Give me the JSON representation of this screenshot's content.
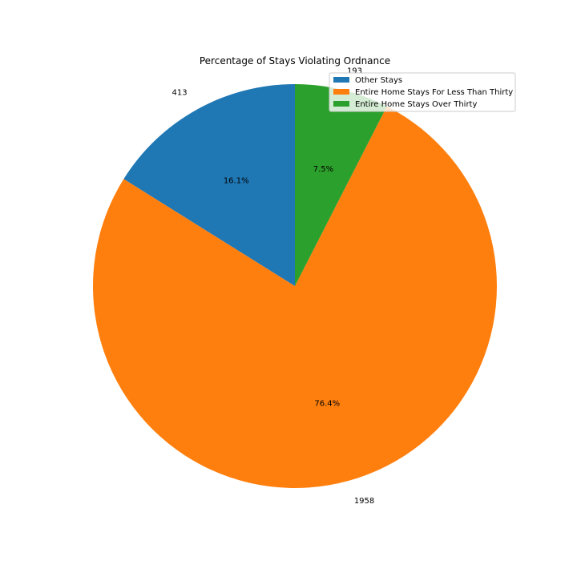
{
  "chart_data": {
    "type": "pie",
    "title": "Percentage of Stays Violating Ordnance",
    "start_angle_deg": 90,
    "direction": "counterclockwise",
    "legend_position": "top-right",
    "slices": [
      {
        "name": "Other Stays",
        "value": 413,
        "label": "413",
        "pct_label": "16.1%",
        "color": "#1f77b4"
      },
      {
        "name": "Entire Home Stays For Less Than Thirty",
        "value": 1958,
        "label": "1958",
        "pct_label": "76.4%",
        "color": "#ff7f0e"
      },
      {
        "name": "Entire Home Stays Over Thirty",
        "value": 193,
        "label": "193",
        "pct_label": "7.5%",
        "color": "#2ca02c"
      }
    ]
  }
}
